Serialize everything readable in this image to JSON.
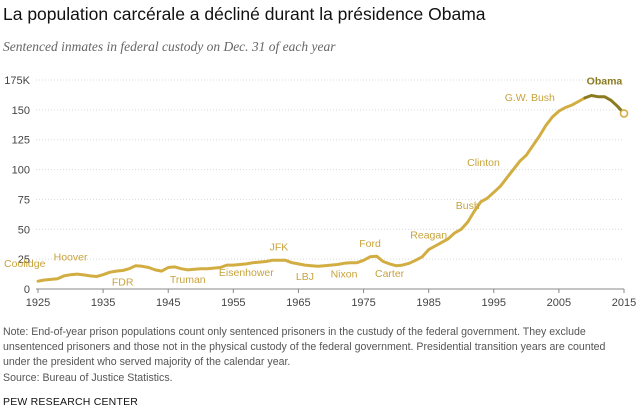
{
  "title": "La population carcérale a décliné durant la présidence Obama",
  "subtitle": "Sentenced inmates in federal custody on Dec. 31 of each year",
  "note": "Note: End-of-year prison populations count only sentenced prisoners in the custudy of the federal government. They exclude unsentenced prisoners and those not in the physical custody of the federal government. Presidential transition years are counted under the president who served majority of the calendar year.",
  "source": "Source: Bureau of Justice Statistics.",
  "brand": "PEW RESEARCH CENTER",
  "colors": {
    "line": "#d2ad42",
    "highlight": "#8a7a20",
    "end_marker": "#d2ad42"
  },
  "chart_data": {
    "type": "line",
    "title": "La population carcérale a décliné durant la présidence Obama",
    "subtitle": "Sentenced inmates in federal custody on Dec. 31 of each year",
    "xlabel": "",
    "ylabel": "",
    "xlim": [
      1925,
      2015
    ],
    "ylim": [
      0,
      175000
    ],
    "x_ticks": [
      "1925",
      "1935",
      "1945",
      "1955",
      "1965",
      "1975",
      "1985",
      "1995",
      "2005",
      "2015"
    ],
    "x_tick_values": [
      1925,
      1935,
      1945,
      1955,
      1965,
      1975,
      1985,
      1995,
      2005,
      2015
    ],
    "y_ticks": [
      "0",
      "25",
      "50",
      "75",
      "100",
      "125",
      "150",
      "175K"
    ],
    "y_tick_values": [
      0,
      25000,
      50000,
      75000,
      100000,
      125000,
      150000,
      175000
    ],
    "grid": "horizontal",
    "series": [
      {
        "name": "Sentenced federal inmates",
        "x": [
          1925,
          1926,
          1927,
          1928,
          1929,
          1930,
          1931,
          1932,
          1933,
          1934,
          1935,
          1936,
          1937,
          1938,
          1939,
          1940,
          1941,
          1942,
          1943,
          1944,
          1945,
          1946,
          1947,
          1948,
          1949,
          1950,
          1951,
          1952,
          1953,
          1954,
          1955,
          1956,
          1957,
          1958,
          1959,
          1960,
          1961,
          1962,
          1963,
          1964,
          1965,
          1966,
          1967,
          1968,
          1969,
          1970,
          1971,
          1972,
          1973,
          1974,
          1975,
          1976,
          1977,
          1978,
          1979,
          1980,
          1981,
          1982,
          1983,
          1984,
          1985,
          1986,
          1987,
          1988,
          1989,
          1990,
          1991,
          1992,
          1993,
          1994,
          1995,
          1996,
          1997,
          1998,
          1999,
          2000,
          2001,
          2002,
          2003,
          2004,
          2005,
          2006,
          2007,
          2008,
          2009,
          2010,
          2011,
          2012,
          2013,
          2014,
          2015
        ],
        "values": [
          6500,
          7500,
          8000,
          8500,
          11000,
          12000,
          12500,
          11800,
          11000,
          10500,
          12000,
          14000,
          15000,
          15500,
          17000,
          19500,
          19000,
          18000,
          16000,
          15000,
          18000,
          18500,
          17000,
          16000,
          16500,
          17000,
          17000,
          17500,
          18000,
          20000,
          20000,
          20500,
          21000,
          22000,
          22500,
          23000,
          24000,
          24000,
          24000,
          22000,
          21000,
          20000,
          19500,
          19000,
          19500,
          20000,
          20500,
          21500,
          22000,
          22000,
          24000,
          27000,
          27500,
          23000,
          21000,
          19500,
          20000,
          21500,
          24000,
          27000,
          33000,
          36000,
          39000,
          42000,
          47000,
          50000,
          56000,
          65000,
          73000,
          76000,
          81000,
          86000,
          93000,
          100000,
          107000,
          112000,
          120000,
          128000,
          137000,
          144000,
          149000,
          152000,
          154000,
          157000,
          160000,
          162000,
          161000,
          161000,
          158000,
          153000,
          147000
        ]
      }
    ],
    "president_labels": [
      {
        "name": "Coolidge",
        "year": 1925
      },
      {
        "name": "Hoover",
        "year": 1930
      },
      {
        "name": "FDR",
        "year": 1938
      },
      {
        "name": "Truman",
        "year": 1948
      },
      {
        "name": "Eisenhower",
        "year": 1957
      },
      {
        "name": "JFK",
        "year": 1962
      },
      {
        "name": "LBJ",
        "year": 1966
      },
      {
        "name": "Nixon",
        "year": 1972
      },
      {
        "name": "Ford",
        "year": 1976
      },
      {
        "name": "Carter",
        "year": 1979
      },
      {
        "name": "Reagan",
        "year": 1985
      },
      {
        "name": "Bush",
        "year": 1991
      },
      {
        "name": "Clinton",
        "year": 1997
      },
      {
        "name": "G.W. Bush",
        "year": 2005
      },
      {
        "name": "Obama",
        "year": 2012
      }
    ],
    "highlight_from_year": 2009,
    "end_marker_year": 2015
  }
}
